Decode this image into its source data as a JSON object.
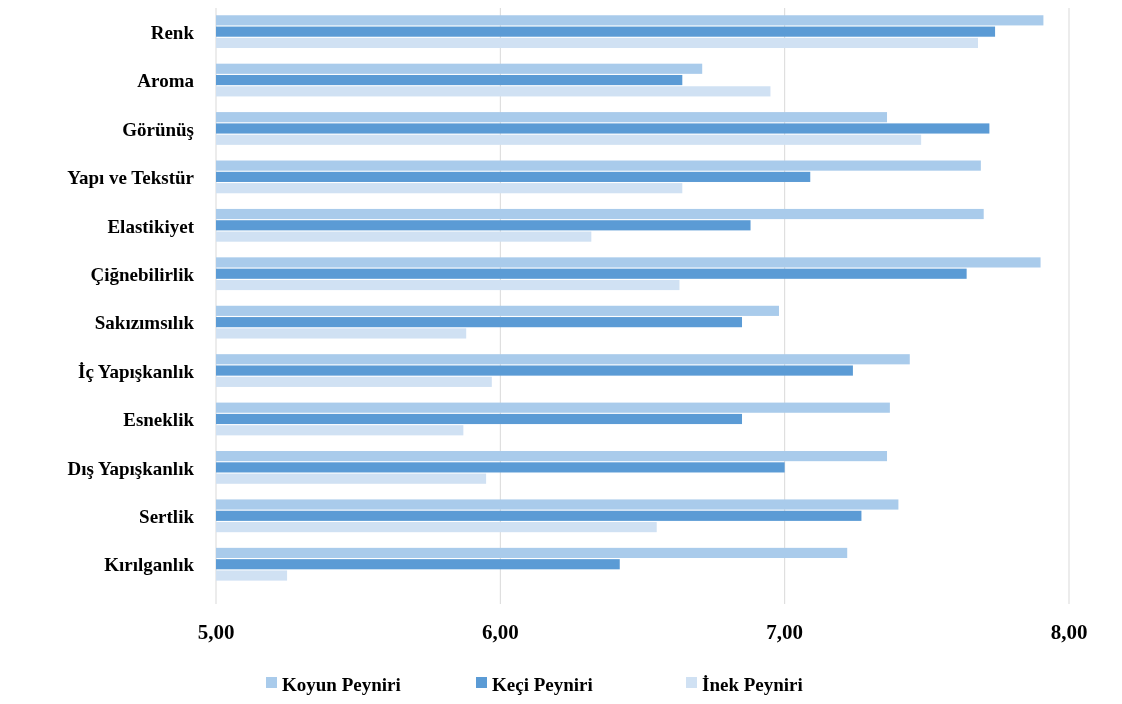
{
  "chart_data": {
    "type": "bar",
    "orientation": "horizontal",
    "categories": [
      "Renk",
      "Aroma",
      "Görünüş",
      "Yapı ve Tekstür",
      "Elastikiyet",
      "Çiğnebilirlik",
      "Sakızımsılık",
      "İç Yapışkanlık",
      "Esneklik",
      "Dış Yapışkanlık",
      "Sertlik",
      "Kırılganlık"
    ],
    "series": [
      {
        "name": "Koyun Peyniri",
        "color": "#a9cbeb",
        "values": [
          7.91,
          6.71,
          7.36,
          7.69,
          7.7,
          7.9,
          6.98,
          7.44,
          7.37,
          7.36,
          7.4,
          7.22
        ]
      },
      {
        "name": "Keçi Peyniri",
        "color": "#5b9bd5",
        "values": [
          7.74,
          6.64,
          7.72,
          7.09,
          6.88,
          7.64,
          6.85,
          7.24,
          6.85,
          7.0,
          7.27,
          6.42
        ]
      },
      {
        "name": "İnek Peyniri",
        "color": "#d0e1f3",
        "values": [
          7.68,
          6.95,
          7.48,
          6.64,
          6.32,
          6.63,
          5.88,
          5.97,
          5.87,
          5.95,
          6.55,
          5.25
        ]
      }
    ],
    "xlim": [
      5,
      8
    ],
    "xticks": [
      {
        "value": 5,
        "label": "5,00"
      },
      {
        "value": 6,
        "label": "6,00"
      },
      {
        "value": 7,
        "label": "7,00"
      },
      {
        "value": 8,
        "label": "8,00"
      }
    ],
    "grid": "x",
    "legend": "bottom"
  }
}
